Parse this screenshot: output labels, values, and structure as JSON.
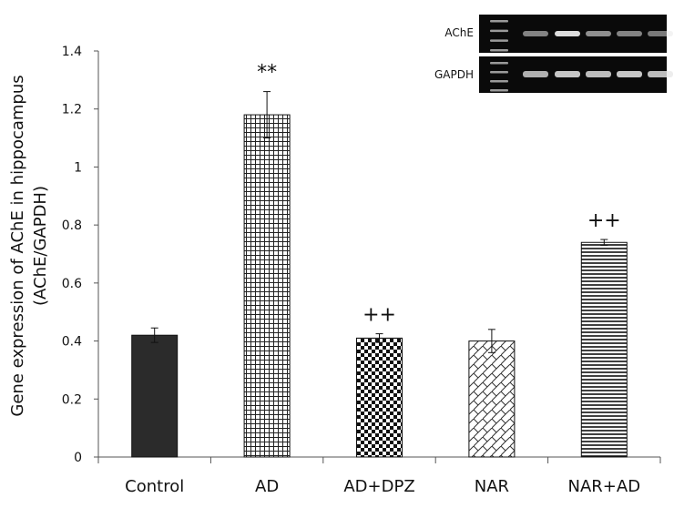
{
  "chart_data": {
    "type": "bar",
    "title": "",
    "xlabel": "",
    "ylabel_line1": "Gene expression of AChE in hippocampus",
    "ylabel_line2": "(AChE/GAPDH)",
    "ylim": [
      0,
      1.4
    ],
    "yticks": [
      "0",
      "0.2",
      "0.4",
      "0.6",
      "0.8",
      "1",
      "1.2",
      "1.4"
    ],
    "categories": [
      "Control",
      "AD",
      "AD+DPZ",
      "NAR",
      "NAR+AD"
    ],
    "values": [
      0.42,
      1.18,
      0.41,
      0.4,
      0.74
    ],
    "errors": [
      0.025,
      0.08,
      0.015,
      0.04,
      0.01
    ],
    "patterns": [
      "solid",
      "grid",
      "checker",
      "diagonal-cross",
      "horizontal"
    ],
    "annotations": [
      "",
      "**",
      "++",
      "",
      "++"
    ],
    "colors": {
      "bar_fill": "#2b2b2b",
      "axis": "#555555",
      "gel_bg": "#0a0a0a",
      "band": "#e8e8e8"
    }
  },
  "gel": {
    "labels": [
      "AChE",
      "GAPDH"
    ],
    "ache_band_intensity": [
      0.55,
      0.95,
      0.6,
      0.55,
      0.5
    ],
    "gapdh_band_intensity": [
      0.75,
      0.85,
      0.8,
      0.85,
      0.8
    ]
  }
}
